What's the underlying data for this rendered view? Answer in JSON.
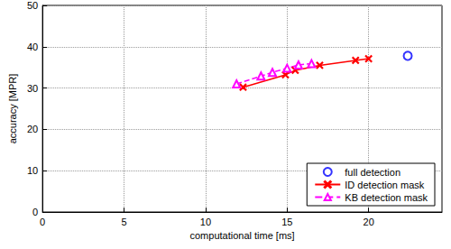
{
  "chart_data": {
    "type": "line",
    "x_label": "computational time [ms]",
    "y_label": "accuracy [MPR]",
    "xlim": [
      0,
      24.5
    ],
    "xticks": [
      0,
      5,
      10,
      15,
      20
    ],
    "ylim": [
      0,
      50
    ],
    "yticks": [
      0,
      10,
      20,
      30,
      40,
      50
    ],
    "grid": true,
    "legend": "lower right",
    "series": [
      {
        "name": "full detection",
        "color": "#0000ff",
        "marker": "o",
        "line_style": "none",
        "x": [
          22.4
        ],
        "values": [
          37.8
        ]
      },
      {
        "name": "ID detection mask",
        "color": "#ff0000",
        "marker": "x",
        "line_style": "solid",
        "x": [
          12.3,
          14.9,
          15.5,
          17.0,
          19.2,
          20.0
        ],
        "values": [
          30.2,
          33.2,
          34.3,
          35.5,
          36.7,
          37.1
        ]
      },
      {
        "name": "KB detection mask",
        "color": "#ff00ff",
        "marker": "^",
        "line_style": "dashed",
        "x": [
          11.9,
          13.4,
          14.1,
          15.0,
          15.7,
          16.5
        ],
        "values": [
          31.0,
          32.9,
          33.8,
          34.8,
          35.6,
          35.9
        ]
      }
    ]
  }
}
